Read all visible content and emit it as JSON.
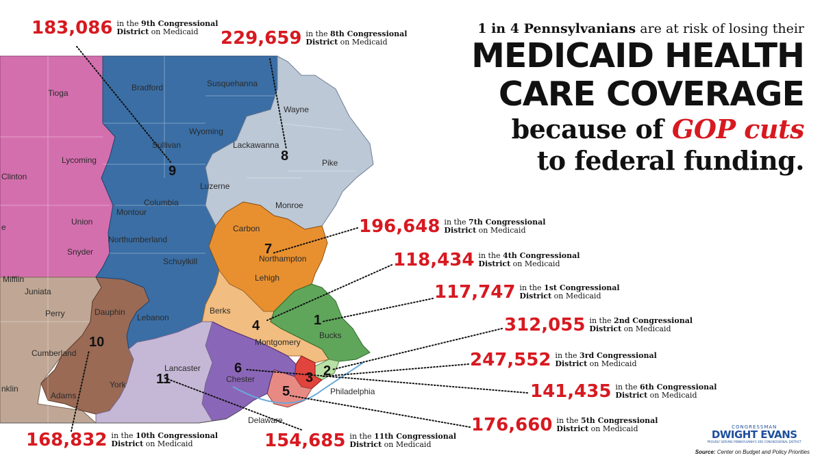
{
  "headline": {
    "line1_bold": "1 in 4 Pennsylvanians",
    "line1_rest": " are at risk of losing their",
    "line2": "MEDICAID HEALTH",
    "line3": "CARE COVERAGE",
    "line4_prefix": "because of ",
    "line4_red": "GOP cuts",
    "line5": "to federal funding."
  },
  "districts": [
    {
      "district": "9",
      "enrollees": "183,086",
      "ordinal": "9th"
    },
    {
      "district": "8",
      "enrollees": "229,659",
      "ordinal": "8th"
    },
    {
      "district": "7",
      "enrollees": "196,648",
      "ordinal": "7th"
    },
    {
      "district": "4",
      "enrollees": "118,434",
      "ordinal": "4th"
    },
    {
      "district": "1",
      "enrollees": "117,747",
      "ordinal": "1st"
    },
    {
      "district": "2",
      "enrollees": "312,055",
      "ordinal": "2nd"
    },
    {
      "district": "3",
      "enrollees": "247,552",
      "ordinal": "3rd"
    },
    {
      "district": "6",
      "enrollees": "141,435",
      "ordinal": "6th"
    },
    {
      "district": "5",
      "enrollees": "176,660",
      "ordinal": "5th"
    },
    {
      "district": "10",
      "enrollees": "168,832",
      "ordinal": "10th"
    },
    {
      "district": "11",
      "enrollees": "154,685",
      "ordinal": "11th"
    }
  ],
  "callout_text": {
    "prefix": "in the ",
    "suffix": " Congressional",
    "line2_bold": "District",
    "line2_rest": " on Medicaid"
  },
  "map_labels": {
    "counties": [
      "Tioga",
      "Bradford",
      "Susquehanna",
      "Wayne",
      "Wyoming",
      "Sullivan",
      "Lackawanna",
      "Lycoming",
      "Clinton",
      "Pike",
      "Luzerne",
      "Columbia",
      "Montour",
      "Union",
      "Monroe",
      "Carbon",
      "Northumberland",
      "Snyder",
      "Northampton",
      "Schuylkill",
      "Lehigh",
      "Mifflin",
      "Juniata",
      "Perry",
      "Dauphin",
      "Lebanon",
      "Berks",
      "Bucks",
      "Montgomery",
      "Cumberland",
      "Lancaster",
      "Chester",
      "Philadelphia",
      "York",
      "Adams",
      "Delaware",
      "nklin",
      "e"
    ]
  },
  "district_colors": {
    "9": "#3a6ea5",
    "8": "#bcc8d6",
    "7": "#e8902f",
    "4": "#f2bd80",
    "1": "#5fa65a",
    "2": "#b9e0a4",
    "3": "#e0443c",
    "6": "#8a66b8",
    "5": "#e88a84",
    "10": "#9a6a55",
    "11": "#c5b8d6",
    "12": "#d46fae",
    "13": "#c0a795"
  },
  "logo": {
    "small": "CONGRESSMAN",
    "name": "DWIGHT EVANS",
    "tag": "PROUDLY SERVING PENNSYLVANIA'S 3RD CONGRESSIONAL DISTRICT"
  },
  "source": {
    "label": "Source:",
    "text": " Center on Budget and Policy Priorities"
  }
}
